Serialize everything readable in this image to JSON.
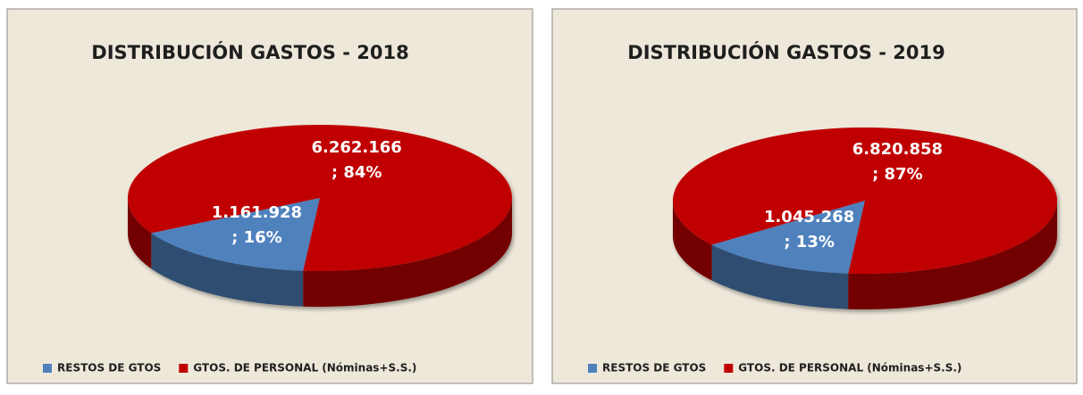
{
  "chart_data": [
    {
      "type": "pie",
      "title": "DISTRIBUCIÓN GASTOS - 2018",
      "categories": [
        "RESTOS DE GTOS",
        "GTOS. DE PERSONAL (Nóminas+S.S.)"
      ],
      "values": [
        1161928,
        6262166
      ],
      "value_labels": [
        "1.161.928",
        "6.262.166"
      ],
      "percent_labels": [
        "; 16%",
        "; 84%"
      ],
      "colors": [
        "#4f81bd",
        "#c00000"
      ],
      "legend": "bottom"
    },
    {
      "type": "pie",
      "title": "DISTRIBUCIÓN GASTOS - 2019",
      "categories": [
        "RESTOS DE GTOS",
        "GTOS. DE PERSONAL (Nóminas+S.S.)"
      ],
      "values": [
        1045268,
        6820858
      ],
      "value_labels": [
        "1.045.268",
        "6.820.858"
      ],
      "percent_labels": [
        "; 13%",
        "; 87%"
      ],
      "colors": [
        "#4f81bd",
        "#c00000"
      ],
      "legend": "bottom"
    }
  ]
}
